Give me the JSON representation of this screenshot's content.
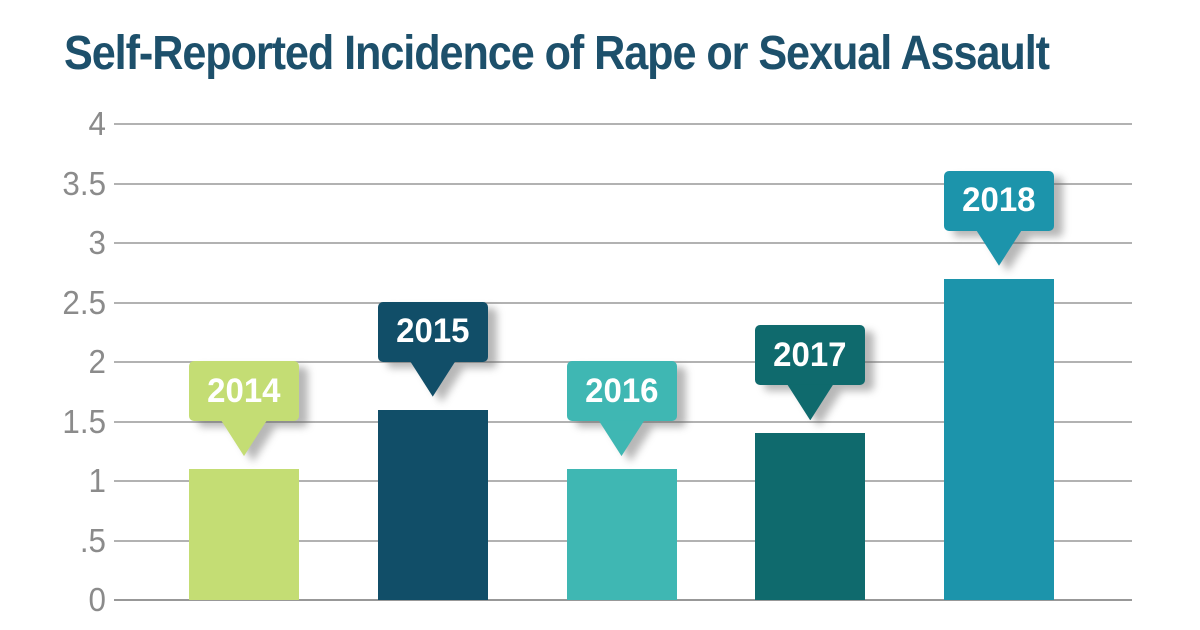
{
  "chart_data": {
    "type": "bar",
    "title": "Self-Reported Incidence of Rape or Sexual Assault",
    "categories": [
      "2014",
      "2015",
      "2016",
      "2017",
      "2018"
    ],
    "values": [
      1.1,
      1.6,
      1.1,
      1.4,
      2.7
    ],
    "bar_colors": [
      "#c4dd74",
      "#114e68",
      "#3fb7b3",
      "#0f6a6d",
      "#1c94ab"
    ],
    "label_style": "callout-bubble-above-bar",
    "callout_text_color": "#ffffff",
    "xlabel": "",
    "ylabel": "",
    "ylim": [
      0,
      4
    ],
    "ytick_labels": [
      "4",
      "3.5",
      "3",
      "2.5",
      "2",
      "1.5",
      "1",
      ".5",
      "0"
    ],
    "ytick_values": [
      4,
      3.5,
      3,
      2.5,
      2,
      1.5,
      1,
      0.5,
      0
    ],
    "grid": true,
    "legend": false,
    "title_color": "#1d506b",
    "axis_label_color": "#8b8b8b",
    "gridline_color": "#b2b2b2",
    "baseline_color": "#989898",
    "background_color": "#ffffff"
  }
}
